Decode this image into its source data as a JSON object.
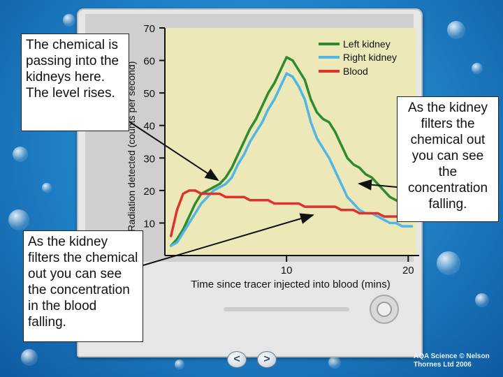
{
  "chart_data": {
    "type": "line",
    "ylabel": "Radiation detected (counts per second)",
    "xlabel": "Time since tracer injected into blood (mins)",
    "xlim": [
      0,
      20.9
    ],
    "ylim": [
      0,
      70
    ],
    "x_ticks": [
      10,
      20
    ],
    "y_ticks": [
      10,
      20,
      30,
      40,
      50,
      60,
      70
    ],
    "legend_position": "top-right",
    "series": [
      {
        "name": "Left kidney",
        "color": "#2e8b2e",
        "x": [
          0.5,
          1.0,
          1.5,
          2.0,
          2.5,
          3.0,
          3.5,
          4.0,
          4.5,
          5.0,
          5.5,
          6.0,
          6.5,
          7.0,
          7.5,
          8.0,
          8.5,
          9.0,
          9.5,
          10.0,
          10.5,
          11.0,
          11.5,
          12.0,
          12.5,
          13.0,
          13.5,
          14.0,
          14.5,
          15.0,
          15.5,
          16.0,
          16.5,
          17.0,
          17.5,
          18.0,
          18.5,
          19.0,
          19.5,
          20.0,
          20.3
        ],
        "values": [
          3,
          5,
          8,
          12,
          16,
          19,
          20,
          21,
          22,
          24,
          27,
          31,
          35,
          39,
          42,
          46,
          50,
          53,
          57,
          61,
          60,
          57,
          54,
          48,
          44,
          42,
          41,
          38,
          34,
          30,
          28,
          27,
          25,
          24,
          22,
          20,
          18,
          17,
          16,
          15,
          14
        ]
      },
      {
        "name": "Right kidney",
        "color": "#4fb6e6",
        "x": [
          0.5,
          1.0,
          1.5,
          2.0,
          2.5,
          3.0,
          3.5,
          4.0,
          4.5,
          5.0,
          5.5,
          6.0,
          6.5,
          7.0,
          7.5,
          8.0,
          8.5,
          9.0,
          9.5,
          10.0,
          10.5,
          11.0,
          11.5,
          12.0,
          12.5,
          13.0,
          13.5,
          14.0,
          14.5,
          15.0,
          15.5,
          16.0,
          16.5,
          17.0,
          17.5,
          18.0,
          18.5,
          19.0,
          19.5,
          20.0,
          20.3
        ],
        "values": [
          3,
          4,
          7,
          10,
          13,
          16,
          18,
          20,
          21,
          22,
          24,
          28,
          31,
          35,
          38,
          41,
          45,
          48,
          52,
          56,
          55,
          52,
          48,
          41,
          36,
          33,
          30,
          26,
          22,
          18,
          16,
          14,
          13,
          13,
          12,
          11,
          10,
          10,
          9,
          9,
          9
        ]
      },
      {
        "name": "Blood",
        "color": "#e0312a",
        "x": [
          0.5,
          1.0,
          1.5,
          2.0,
          2.5,
          3.0,
          3.5,
          4.0,
          4.5,
          5.0,
          5.5,
          6.0,
          6.5,
          7.0,
          7.5,
          8.0,
          8.5,
          9.0,
          9.5,
          10.0,
          10.5,
          11.0,
          11.5,
          12.0,
          12.5,
          13.0,
          13.5,
          14.0,
          14.5,
          15.0,
          15.5,
          16.0,
          16.5,
          17.0,
          17.5,
          18.0,
          18.5,
          19.0,
          19.5,
          20.0
        ],
        "values": [
          6,
          14,
          19,
          20,
          20,
          19,
          19,
          19,
          19,
          18,
          18,
          18,
          18,
          17,
          17,
          17,
          17,
          16,
          16,
          16,
          16,
          16,
          15,
          15,
          15,
          15,
          15,
          15,
          14,
          14,
          14,
          13,
          13,
          13,
          13,
          12,
          12,
          12,
          12,
          12
        ]
      }
    ]
  },
  "callouts": {
    "rising": "The chemical is passing into the kidneys here. The level rises.",
    "blood_falling": "As the kidney filters the chemical out you can see the concentration in the blood falling.",
    "kidney_falling": "As the kidney filters the chemical out you can see the concentration falling."
  },
  "nav": {
    "prev_label": "<",
    "next_label": ">"
  },
  "credit": {
    "line1": "AQA Science © Nelson",
    "line2": "Thornes Ltd 2006"
  }
}
